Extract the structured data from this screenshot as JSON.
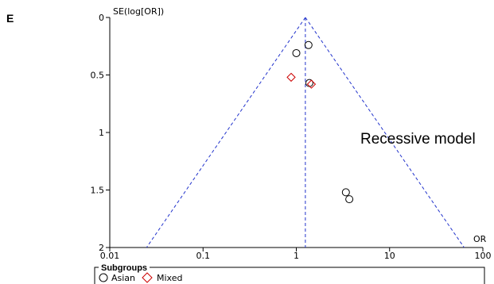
{
  "panel_label": "E",
  "chart_data": {
    "type": "scatter",
    "subtype": "funnel plot",
    "title": "",
    "xlabel": "OR",
    "ylabel": "SE(log[OR])",
    "x_scale": "log",
    "xlim": [
      0.01,
      100
    ],
    "ylim": [
      0,
      2
    ],
    "y_reversed": true,
    "x_ticks": [
      0.01,
      0.1,
      1,
      10,
      100
    ],
    "x_tick_labels": [
      "0.01",
      "0.1",
      "1",
      "10",
      "100"
    ],
    "y_ticks": [
      0,
      0.5,
      1,
      1.5,
      2
    ],
    "y_tick_labels": [
      "0",
      "0.5",
      "1",
      "1.5",
      "2"
    ],
    "pooled_or": 1.25,
    "annotation": "Recessive model",
    "series": [
      {
        "name": "Asian",
        "marker": "circle",
        "color": "#000000",
        "points": [
          {
            "or": 1.35,
            "se": 0.24
          },
          {
            "or": 1.0,
            "se": 0.31
          },
          {
            "or": 1.38,
            "se": 0.57
          },
          {
            "or": 3.4,
            "se": 1.52
          },
          {
            "or": 3.7,
            "se": 1.58
          }
        ]
      },
      {
        "name": "Mixed",
        "marker": "diamond",
        "color": "#cc0000",
        "points": [
          {
            "or": 0.88,
            "se": 0.52
          },
          {
            "or": 1.45,
            "se": 0.58
          }
        ]
      }
    ],
    "legend": {
      "title": "Subgroups",
      "placement": "bottom",
      "entries": [
        "Asian",
        "Mixed"
      ]
    },
    "colors": {
      "funnel": "#2233cc",
      "axis": "#000000"
    }
  }
}
